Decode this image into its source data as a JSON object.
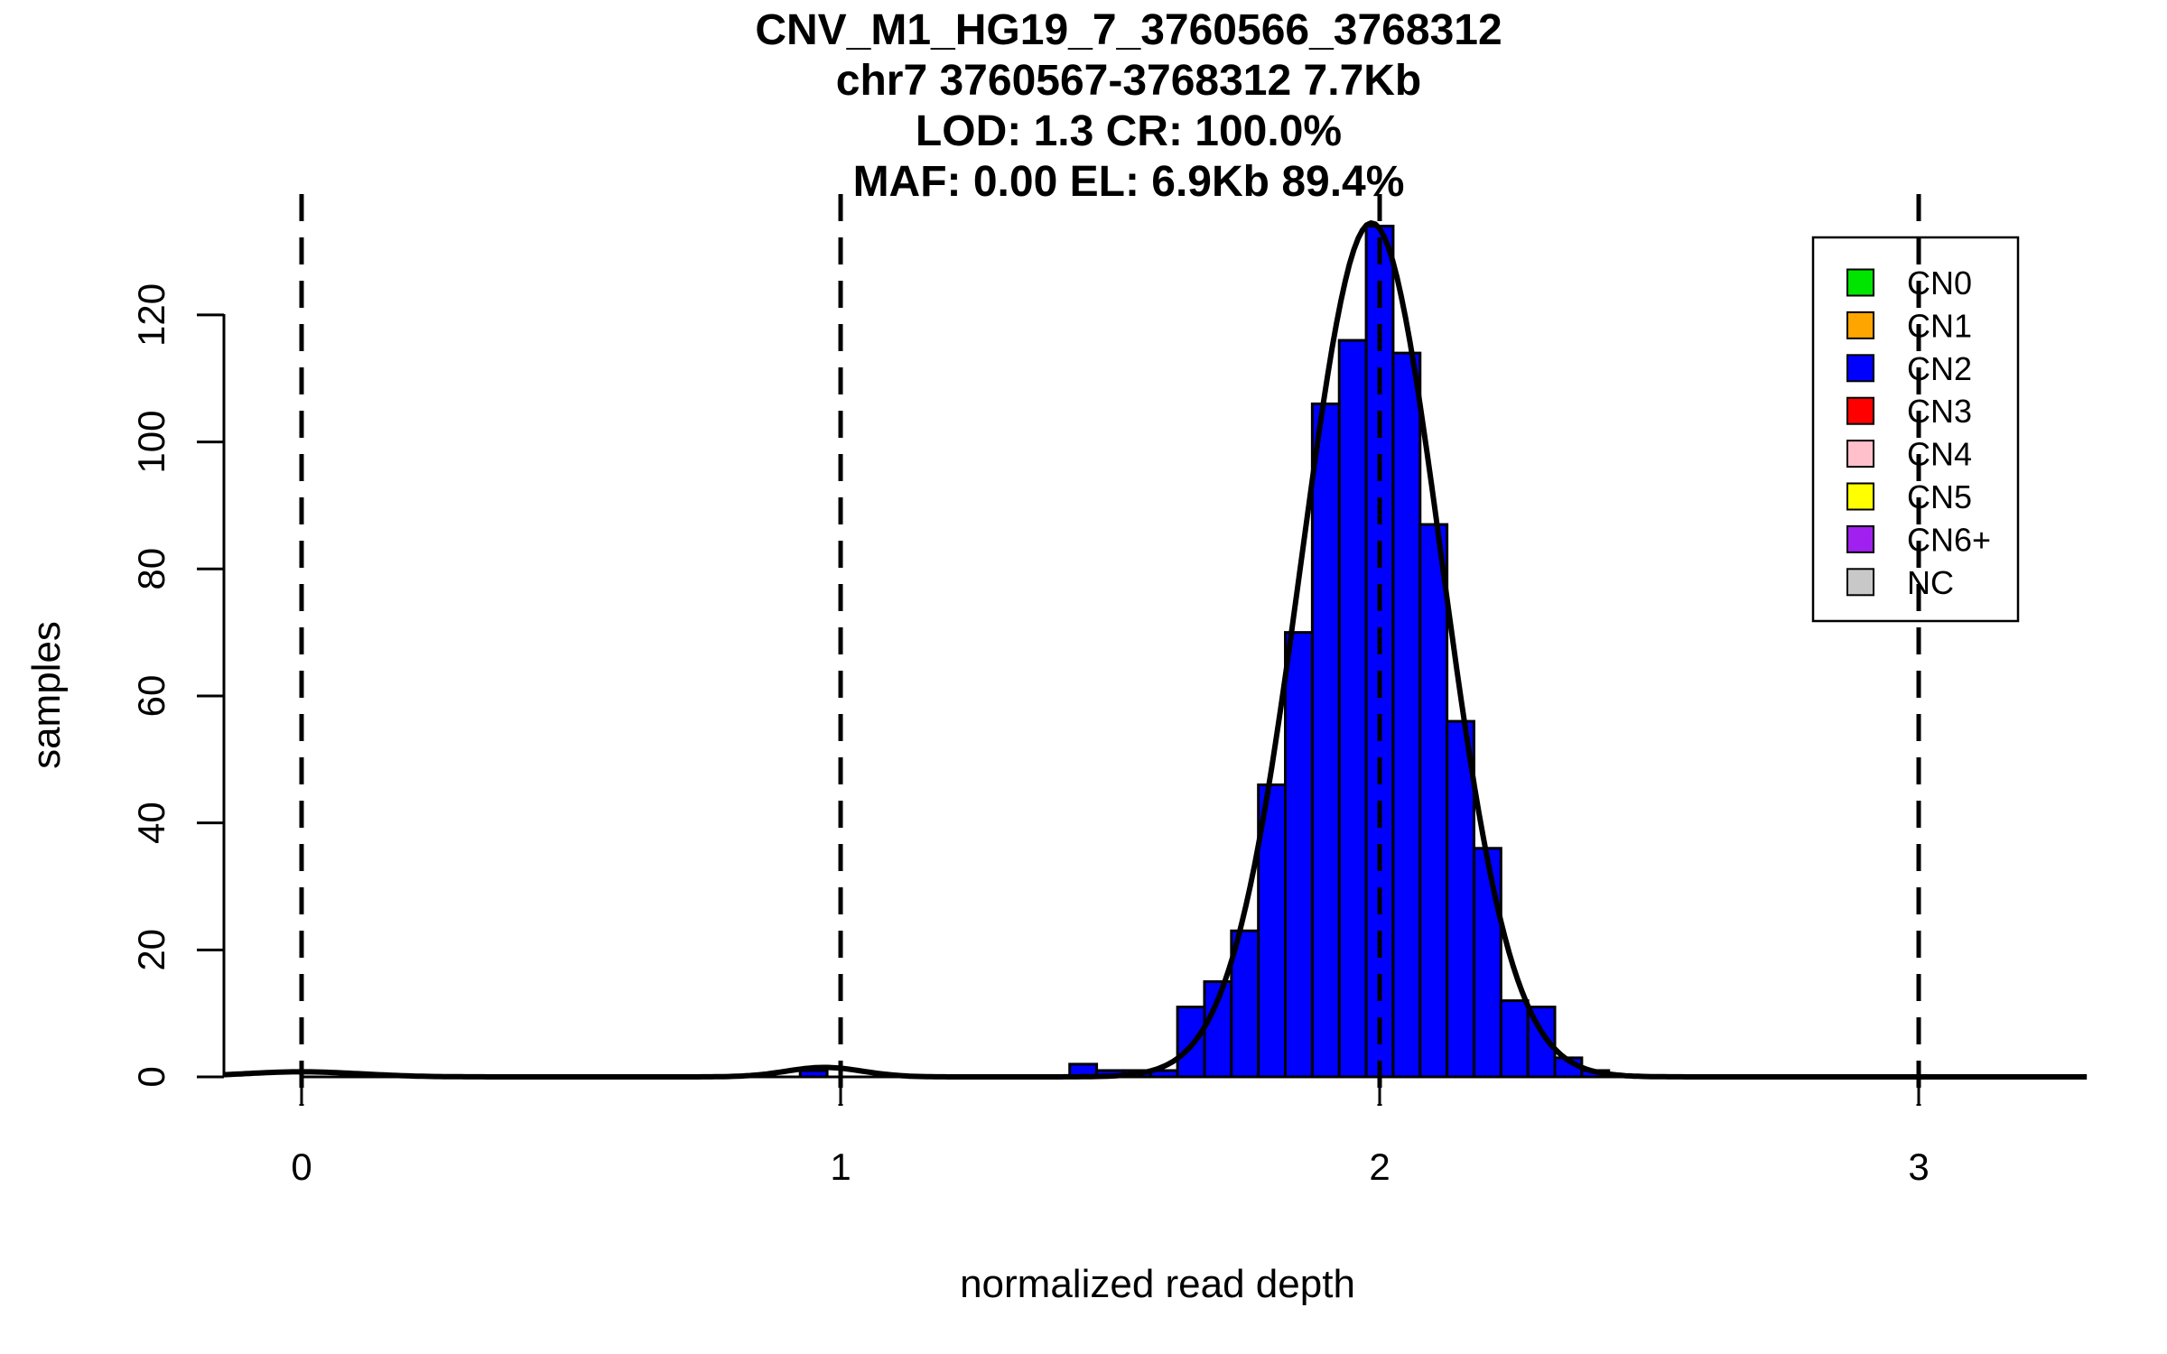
{
  "figure": {
    "title_lines": [
      "CNV_M1_HG19_7_3760566_3768312",
      "chr7 3760567-3768312 7.7Kb",
      "LOD: 1.3 CR: 100.0%",
      "MAF: 0.00 EL: 6.9Kb 89.4%"
    ]
  },
  "chart_data": {
    "type": "bar",
    "subtype": "histogram-with-density-fit",
    "title": "CNV_M1_HG19_7_3760566_3768312",
    "title_lines": [
      "CNV_M1_HG19_7_3760566_3768312",
      "chr7 3760567-3768312 7.7Kb",
      "LOD: 1.3 CR: 100.0%",
      "MAF: 0.00 EL: 6.9Kb 89.4%"
    ],
    "xlabel": "normalized read depth",
    "ylabel": "samples",
    "x_ticks": [
      0,
      1,
      2,
      3
    ],
    "y_ticks": [
      0,
      20,
      40,
      60,
      80,
      100,
      120
    ],
    "xlim": [
      -0.14,
      3.32
    ],
    "ylim": [
      0,
      139
    ],
    "grid": false,
    "bin_width": 0.05,
    "bar_color": "#0000FF",
    "bar_border_color": "#000000",
    "bars": [
      {
        "x": 0.95,
        "count": 1
      },
      {
        "x": 1.45,
        "count": 2
      },
      {
        "x": 1.5,
        "count": 1
      },
      {
        "x": 1.55,
        "count": 1
      },
      {
        "x": 1.6,
        "count": 1
      },
      {
        "x": 1.65,
        "count": 11
      },
      {
        "x": 1.7,
        "count": 15
      },
      {
        "x": 1.75,
        "count": 23
      },
      {
        "x": 1.8,
        "count": 46
      },
      {
        "x": 1.85,
        "count": 70
      },
      {
        "x": 1.9,
        "count": 106
      },
      {
        "x": 1.95,
        "count": 116
      },
      {
        "x": 2.0,
        "count": 134
      },
      {
        "x": 2.05,
        "count": 114
      },
      {
        "x": 2.1,
        "count": 87
      },
      {
        "x": 2.15,
        "count": 56
      },
      {
        "x": 2.2,
        "count": 36
      },
      {
        "x": 2.25,
        "count": 12
      },
      {
        "x": 2.3,
        "count": 11
      },
      {
        "x": 2.35,
        "count": 3
      },
      {
        "x": 2.4,
        "count": 1
      }
    ],
    "density_curve": {
      "color": "#000000",
      "components": [
        {
          "mean": 0.0,
          "sd": 0.11,
          "amp": 0.8
        },
        {
          "mean": 0.97,
          "sd": 0.07,
          "amp": 1.5
        },
        {
          "mean": 1.985,
          "sd": 0.13,
          "amp": 134.5
        }
      ]
    },
    "vlines": {
      "values": [
        0,
        1,
        2,
        3
      ],
      "style": "dashed",
      "color": "#000000"
    },
    "legend": {
      "position": "top-right",
      "items": [
        {
          "label": "CN0",
          "color": "#00E500"
        },
        {
          "label": "CN1",
          "color": "#FFA500"
        },
        {
          "label": "CN2",
          "color": "#0000FF"
        },
        {
          "label": "CN3",
          "color": "#FF0000"
        },
        {
          "label": "CN4",
          "color": "#FFC0CB"
        },
        {
          "label": "CN5",
          "color": "#FFFF00"
        },
        {
          "label": "CN6+",
          "color": "#A020F0"
        },
        {
          "label": "NC",
          "color": "#C8C8C8"
        }
      ]
    }
  }
}
